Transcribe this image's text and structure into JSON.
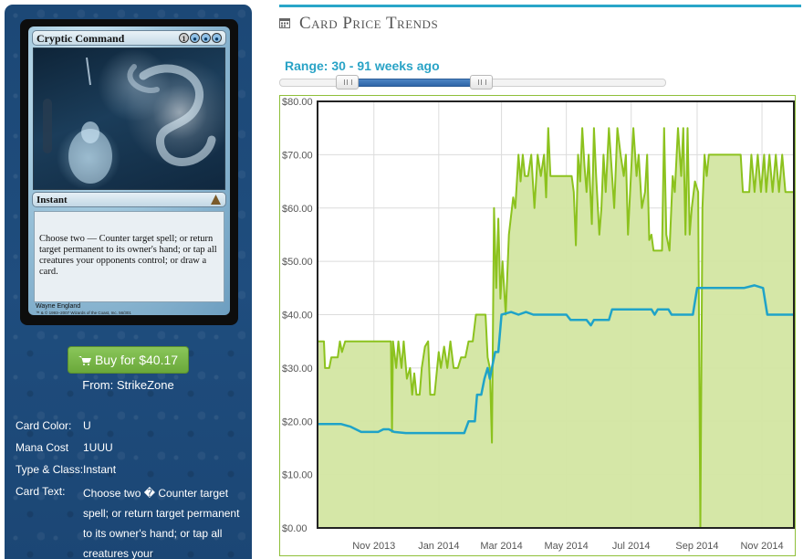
{
  "card": {
    "name": "Cryptic Command",
    "mana_cost_symbols": [
      "1",
      "U",
      "U",
      "U"
    ],
    "type_line": "Instant",
    "rules_text": "Choose two — Counter target spell; or return target permanent to its owner's hand; or tap all creatures your opponents control; or draw a card.",
    "artist": "Wayne England",
    "copyright": "™ & © 1993–2007 Wizards of the Coast, Inc. 56/301"
  },
  "buy": {
    "label": "Buy for $40.17",
    "from": "From: StrikeZone"
  },
  "properties": {
    "color_label": "Card Color:",
    "color_value": "U",
    "mana_label": "Mana Cost",
    "mana_value": "1UUU",
    "type_label": "Type & Class:",
    "type_value": "Instant",
    "text_label": "Card Text:",
    "text_value": "Choose two � Counter target spell; or return target permanent to its owner's hand; or tap all creatures your"
  },
  "section": {
    "title": "Card Price Trends",
    "range_label": "Range: 30 - 91 weeks ago"
  },
  "slider": {
    "low_week": 30,
    "high_week": 91
  },
  "colors": {
    "accent": "#29a6c9",
    "green_line": "#8cc21e",
    "green_fill": "#d3e6a2",
    "blue_line": "#1fa3c8",
    "button": "#72ad42"
  },
  "chart_data": {
    "type": "line",
    "title": "",
    "xlabel": "",
    "ylabel": "",
    "x_range": [
      "2013-09-09",
      "2014-12-01"
    ],
    "ylim": [
      0,
      80
    ],
    "y_ticks": [
      "$0.00",
      "$10.00",
      "$20.00",
      "$30.00",
      "$40.00",
      "$50.00",
      "$60.00",
      "$70.00",
      "$80.00"
    ],
    "x_ticks": [
      {
        "label": "Nov 2013",
        "date": "2013-11-01"
      },
      {
        "label": "Jan 2014",
        "date": "2014-01-01"
      },
      {
        "label": "Mar 2014",
        "date": "2014-03-01"
      },
      {
        "label": "May 2014",
        "date": "2014-05-01"
      },
      {
        "label": "Jul 2014",
        "date": "2014-07-01"
      },
      {
        "label": "Sep 2014",
        "date": "2014-09-01"
      },
      {
        "label": "Nov 2014",
        "date": "2014-11-01"
      }
    ],
    "grid": true,
    "series": [
      {
        "area": true,
        "points": [
          [
            "2013-09-09",
            35
          ],
          [
            "2013-09-15",
            35
          ],
          [
            "2013-09-16",
            30
          ],
          [
            "2013-09-20",
            30
          ],
          [
            "2013-09-22",
            32
          ],
          [
            "2013-09-28",
            32
          ],
          [
            "2013-09-30",
            35
          ],
          [
            "2013-10-02",
            33
          ],
          [
            "2013-10-05",
            35
          ],
          [
            "2013-10-12",
            35
          ],
          [
            "2013-10-20",
            35
          ],
          [
            "2013-10-30",
            35
          ],
          [
            "2013-11-05",
            35
          ],
          [
            "2013-11-12",
            35
          ],
          [
            "2013-11-17",
            35
          ],
          [
            "2013-11-18",
            18
          ],
          [
            "2013-11-19",
            35
          ],
          [
            "2013-11-22",
            30
          ],
          [
            "2013-11-24",
            35
          ],
          [
            "2013-11-27",
            30
          ],
          [
            "2013-11-29",
            35
          ],
          [
            "2013-12-02",
            28
          ],
          [
            "2013-12-05",
            30
          ],
          [
            "2013-12-07",
            25
          ],
          [
            "2013-12-09",
            29
          ],
          [
            "2013-12-11",
            25
          ],
          [
            "2013-12-14",
            25
          ],
          [
            "2013-12-16",
            30
          ],
          [
            "2013-12-19",
            34
          ],
          [
            "2013-12-22",
            35
          ],
          [
            "2013-12-24",
            25
          ],
          [
            "2013-12-28",
            25
          ],
          [
            "2014-01-01",
            33
          ],
          [
            "2014-01-03",
            30
          ],
          [
            "2014-01-06",
            34
          ],
          [
            "2014-01-09",
            30
          ],
          [
            "2014-01-12",
            35
          ],
          [
            "2014-01-15",
            30
          ],
          [
            "2014-01-19",
            30
          ],
          [
            "2014-01-22",
            32
          ],
          [
            "2014-01-26",
            32
          ],
          [
            "2014-01-29",
            35
          ],
          [
            "2014-02-02",
            35
          ],
          [
            "2014-02-05",
            40
          ],
          [
            "2014-02-10",
            40
          ],
          [
            "2014-02-14",
            40
          ],
          [
            "2014-02-16",
            32
          ],
          [
            "2014-02-18",
            30
          ],
          [
            "2014-02-20",
            16
          ],
          [
            "2014-02-22",
            60
          ],
          [
            "2014-02-24",
            45
          ],
          [
            "2014-02-26",
            58
          ],
          [
            "2014-02-28",
            43
          ],
          [
            "2014-03-02",
            50
          ],
          [
            "2014-03-05",
            40
          ],
          [
            "2014-03-08",
            55
          ],
          [
            "2014-03-12",
            62
          ],
          [
            "2014-03-14",
            60
          ],
          [
            "2014-03-17",
            70
          ],
          [
            "2014-03-19",
            65
          ],
          [
            "2014-03-21",
            70
          ],
          [
            "2014-03-23",
            66
          ],
          [
            "2014-03-26",
            66
          ],
          [
            "2014-03-29",
            70
          ],
          [
            "2014-04-01",
            60
          ],
          [
            "2014-04-04",
            70
          ],
          [
            "2014-04-07",
            66
          ],
          [
            "2014-04-10",
            70
          ],
          [
            "2014-04-12",
            62
          ],
          [
            "2014-04-14",
            75
          ],
          [
            "2014-04-16",
            66
          ],
          [
            "2014-04-20",
            66
          ],
          [
            "2014-04-25",
            66
          ],
          [
            "2014-05-02",
            66
          ],
          [
            "2014-05-06",
            66
          ],
          [
            "2014-05-08",
            63
          ],
          [
            "2014-05-10",
            53
          ],
          [
            "2014-05-12",
            70
          ],
          [
            "2014-05-14",
            65
          ],
          [
            "2014-05-16",
            75
          ],
          [
            "2014-05-18",
            68
          ],
          [
            "2014-05-20",
            63
          ],
          [
            "2014-05-22",
            70
          ],
          [
            "2014-05-25",
            57
          ],
          [
            "2014-05-27",
            75
          ],
          [
            "2014-05-29",
            66
          ],
          [
            "2014-06-01",
            55
          ],
          [
            "2014-06-03",
            60
          ],
          [
            "2014-06-05",
            70
          ],
          [
            "2014-06-07",
            63
          ],
          [
            "2014-06-10",
            75
          ],
          [
            "2014-06-13",
            66
          ],
          [
            "2014-06-15",
            60
          ],
          [
            "2014-06-18",
            75
          ],
          [
            "2014-06-21",
            70
          ],
          [
            "2014-06-24",
            66
          ],
          [
            "2014-06-26",
            70
          ],
          [
            "2014-06-28",
            55
          ],
          [
            "2014-07-01",
            67
          ],
          [
            "2014-07-03",
            75
          ],
          [
            "2014-07-06",
            66
          ],
          [
            "2014-07-08",
            70
          ],
          [
            "2014-07-11",
            60
          ],
          [
            "2014-07-14",
            63
          ],
          [
            "2014-07-16",
            70
          ],
          [
            "2014-07-18",
            54
          ],
          [
            "2014-07-20",
            55
          ],
          [
            "2014-07-22",
            52
          ],
          [
            "2014-07-25",
            52
          ],
          [
            "2014-07-28",
            52
          ],
          [
            "2014-07-30",
            52
          ],
          [
            "2014-08-01",
            75
          ],
          [
            "2014-08-03",
            55
          ],
          [
            "2014-08-06",
            52
          ],
          [
            "2014-08-09",
            66
          ],
          [
            "2014-08-11",
            63
          ],
          [
            "2014-08-14",
            75
          ],
          [
            "2014-08-17",
            66
          ],
          [
            "2014-08-19",
            75
          ],
          [
            "2014-08-21",
            55
          ],
          [
            "2014-08-23",
            75
          ],
          [
            "2014-08-25",
            55
          ],
          [
            "2014-08-27",
            60
          ],
          [
            "2014-08-30",
            65
          ],
          [
            "2014-09-02",
            63
          ],
          [
            "2014-09-04",
            0
          ],
          [
            "2014-09-06",
            60
          ],
          [
            "2014-09-08",
            70
          ],
          [
            "2014-09-10",
            66
          ],
          [
            "2014-09-12",
            70
          ],
          [
            "2014-09-15",
            70
          ],
          [
            "2014-09-20",
            70
          ],
          [
            "2014-09-28",
            70
          ],
          [
            "2014-10-05",
            70
          ],
          [
            "2014-10-12",
            70
          ],
          [
            "2014-10-14",
            63
          ],
          [
            "2014-10-20",
            63
          ],
          [
            "2014-10-22",
            70
          ],
          [
            "2014-10-25",
            63
          ],
          [
            "2014-10-28",
            70
          ],
          [
            "2014-10-31",
            63
          ],
          [
            "2014-11-03",
            70
          ],
          [
            "2014-11-05",
            63
          ],
          [
            "2014-11-08",
            70
          ],
          [
            "2014-11-11",
            63
          ],
          [
            "2014-11-14",
            70
          ],
          [
            "2014-11-17",
            63
          ],
          [
            "2014-11-20",
            70
          ],
          [
            "2014-11-23",
            63
          ],
          [
            "2014-11-28",
            63
          ],
          [
            "2014-12-01",
            63
          ]
        ]
      },
      {
        "area": false,
        "points": [
          [
            "2013-09-09",
            19.5
          ],
          [
            "2013-10-01",
            19.5
          ],
          [
            "2013-10-10",
            19
          ],
          [
            "2013-10-20",
            18
          ],
          [
            "2013-11-05",
            18
          ],
          [
            "2013-11-10",
            18.5
          ],
          [
            "2013-11-15",
            18.5
          ],
          [
            "2013-11-20",
            18
          ],
          [
            "2013-12-01",
            17.8
          ],
          [
            "2014-01-15",
            17.8
          ],
          [
            "2014-01-25",
            17.8
          ],
          [
            "2014-01-29",
            20
          ],
          [
            "2014-02-04",
            20
          ],
          [
            "2014-02-06",
            25
          ],
          [
            "2014-02-10",
            25
          ],
          [
            "2014-02-13",
            28
          ],
          [
            "2014-02-16",
            30
          ],
          [
            "2014-02-18",
            28
          ],
          [
            "2014-02-20",
            30
          ],
          [
            "2014-02-23",
            33
          ],
          [
            "2014-02-26",
            33
          ],
          [
            "2014-03-01",
            40
          ],
          [
            "2014-03-10",
            40.5
          ],
          [
            "2014-03-17",
            40
          ],
          [
            "2014-03-24",
            40.5
          ],
          [
            "2014-03-31",
            40
          ],
          [
            "2014-04-15",
            40
          ],
          [
            "2014-05-01",
            40
          ],
          [
            "2014-05-05",
            39
          ],
          [
            "2014-05-20",
            39
          ],
          [
            "2014-05-24",
            38
          ],
          [
            "2014-05-27",
            39
          ],
          [
            "2014-06-10",
            39
          ],
          [
            "2014-06-13",
            41
          ],
          [
            "2014-07-01",
            41
          ],
          [
            "2014-07-20",
            41
          ],
          [
            "2014-07-23",
            40
          ],
          [
            "2014-07-26",
            41
          ],
          [
            "2014-08-05",
            41
          ],
          [
            "2014-08-08",
            40
          ],
          [
            "2014-08-28",
            40
          ],
          [
            "2014-09-01",
            45
          ],
          [
            "2014-10-15",
            45
          ],
          [
            "2014-10-25",
            45.5
          ],
          [
            "2014-11-02",
            45
          ],
          [
            "2014-11-06",
            40
          ],
          [
            "2014-12-01",
            40
          ]
        ]
      }
    ]
  }
}
